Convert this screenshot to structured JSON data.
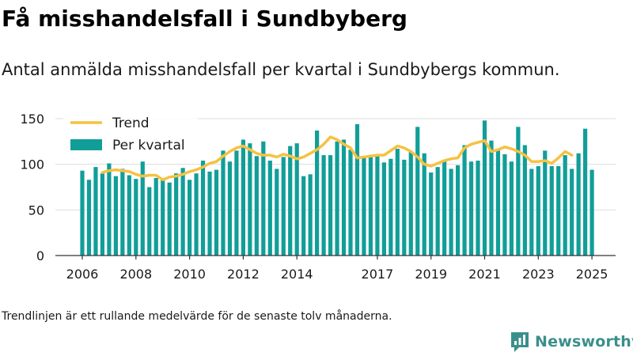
{
  "title": "Få misshandelsfall i Sundbyberg",
  "subtitle": "Antal anmälda misshandelsfall per kvartal i Sundbybergs kommun.",
  "footnote": "Trendlinjen är ett rullande medelvärde för de senaste tolv månaderna.",
  "brand": {
    "name": "Newsworthy",
    "color": "#3b8f8a"
  },
  "colors": {
    "bars": "#119e99",
    "trend": "#f5c242",
    "grid": "#dddddd",
    "axis": "#333333"
  },
  "chart_data": {
    "type": "bar",
    "ylim": [
      0,
      150
    ],
    "yticks": [
      0,
      50,
      100,
      150
    ],
    "xticks": [
      "2006",
      "2008",
      "2010",
      "2012",
      "2014",
      "2017",
      "2019",
      "2021",
      "2023",
      "2025"
    ],
    "grid": true,
    "legend_position": "top-left",
    "series": [
      {
        "name": "Per kvartal",
        "type": "bar",
        "start": "2006-Q1",
        "values": [
          93,
          83,
          97,
          90,
          101,
          87,
          95,
          88,
          84,
          103,
          75,
          85,
          83,
          80,
          90,
          96,
          83,
          90,
          104,
          92,
          94,
          115,
          103,
          115,
          127,
          123,
          109,
          125,
          104,
          95,
          108,
          120,
          123,
          87,
          89,
          137,
          110,
          110,
          125,
          127,
          116,
          144,
          108,
          109,
          110,
          102,
          106,
          117,
          105,
          114,
          141,
          112,
          91,
          97,
          104,
          95,
          99,
          121,
          103,
          104,
          148,
          126,
          116,
          111,
          103,
          141,
          121,
          95,
          98,
          115,
          98,
          98,
          110,
          95,
          112,
          139,
          94
        ]
      },
      {
        "name": "Trend",
        "type": "line",
        "start": "2006-Q4",
        "values": [
          91,
          93,
          94,
          93,
          92,
          89,
          87,
          88,
          88,
          83,
          86,
          87,
          89,
          92,
          94,
          97,
          101,
          103,
          109,
          114,
          118,
          120,
          116,
          112,
          110,
          110,
          108,
          111,
          109,
          106,
          108,
          112,
          116,
          122,
          130,
          127,
          122,
          118,
          107,
          108,
          109,
          110,
          110,
          115,
          120,
          118,
          114,
          108,
          100,
          98,
          101,
          104,
          106,
          107,
          118,
          122,
          124,
          126,
          114,
          116,
          119,
          117,
          114,
          110,
          103,
          103,
          104,
          101,
          107,
          114,
          110
        ]
      }
    ]
  }
}
